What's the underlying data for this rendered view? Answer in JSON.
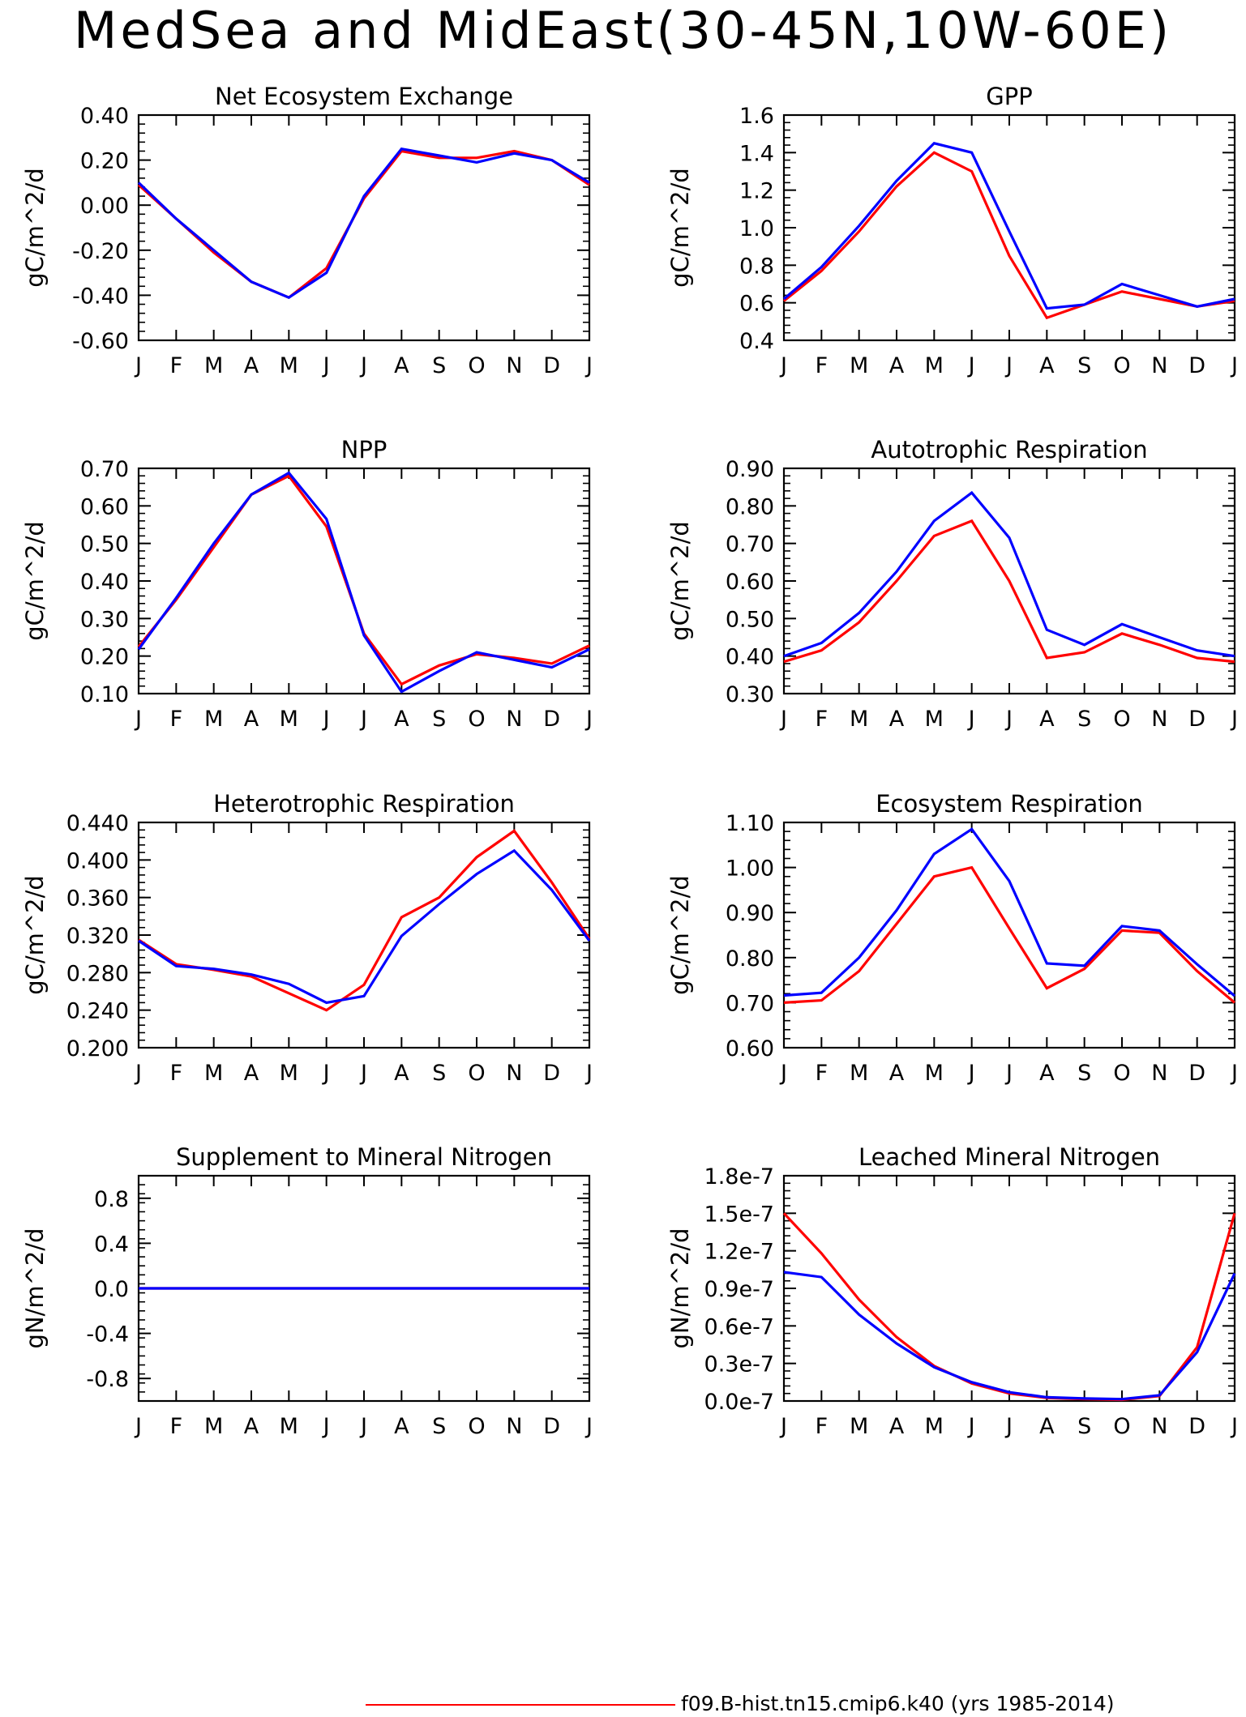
{
  "title": "MedSea and MidEast(30-45N,10W-60E)",
  "legend": {
    "label": "f09.B-hist.tn15.cmip6.k40 (yrs 1985-2014)",
    "color": "#ff0000"
  },
  "colors": {
    "red_series": "#ff0000",
    "blue_series": "#0000ff"
  },
  "chart_data": [
    {
      "type": "line",
      "title": "Net Ecosystem Exchange",
      "ylabel": "gC/m^2/d",
      "categories": [
        "J",
        "F",
        "M",
        "A",
        "M",
        "J",
        "J",
        "A",
        "S",
        "O",
        "N",
        "D",
        "J"
      ],
      "ylim": [
        -0.6,
        0.4
      ],
      "yticks": [
        "-0.60",
        "-0.40",
        "-0.20",
        "0.00",
        "0.20",
        "0.40"
      ],
      "series": [
        {
          "color": "#ff0000",
          "values": [
            0.09,
            -0.06,
            -0.21,
            -0.34,
            -0.41,
            -0.28,
            0.03,
            0.24,
            0.21,
            0.21,
            0.24,
            0.2,
            0.09
          ]
        },
        {
          "color": "#0000ff",
          "values": [
            0.1,
            -0.06,
            -0.2,
            -0.34,
            -0.41,
            -0.3,
            0.04,
            0.25,
            0.22,
            0.19,
            0.23,
            0.2,
            0.1
          ]
        }
      ]
    },
    {
      "type": "line",
      "title": "GPP",
      "ylabel": "gC/m^2/d",
      "categories": [
        "J",
        "F",
        "M",
        "A",
        "M",
        "J",
        "J",
        "A",
        "S",
        "O",
        "N",
        "D",
        "J"
      ],
      "ylim": [
        0.4,
        1.6
      ],
      "yticks": [
        "0.4",
        "0.6",
        "0.8",
        "1.0",
        "1.2",
        "1.4",
        "1.6"
      ],
      "series": [
        {
          "color": "#ff0000",
          "values": [
            0.61,
            0.77,
            0.98,
            1.22,
            1.4,
            1.3,
            0.85,
            0.52,
            0.59,
            0.66,
            0.62,
            0.58,
            0.61
          ]
        },
        {
          "color": "#0000ff",
          "values": [
            0.62,
            0.79,
            1.01,
            1.25,
            1.45,
            1.4,
            0.98,
            0.57,
            0.59,
            0.7,
            0.64,
            0.58,
            0.62
          ]
        }
      ]
    },
    {
      "type": "line",
      "title": "NPP",
      "ylabel": "gC/m^2/d",
      "categories": [
        "J",
        "F",
        "M",
        "A",
        "M",
        "J",
        "J",
        "A",
        "S",
        "O",
        "N",
        "D",
        "J"
      ],
      "ylim": [
        0.1,
        0.7
      ],
      "yticks": [
        "0.10",
        "0.20",
        "0.30",
        "0.40",
        "0.50",
        "0.60",
        "0.70"
      ],
      "series": [
        {
          "color": "#ff0000",
          "values": [
            0.225,
            0.35,
            0.49,
            0.63,
            0.68,
            0.545,
            0.26,
            0.125,
            0.175,
            0.205,
            0.195,
            0.18,
            0.228
          ]
        },
        {
          "color": "#0000ff",
          "values": [
            0.218,
            0.355,
            0.5,
            0.63,
            0.688,
            0.565,
            0.255,
            0.105,
            0.16,
            0.21,
            0.19,
            0.17,
            0.218
          ]
        }
      ]
    },
    {
      "type": "line",
      "title": "Autotrophic Respiration",
      "ylabel": "gC/m^2/d",
      "categories": [
        "J",
        "F",
        "M",
        "A",
        "M",
        "J",
        "J",
        "A",
        "S",
        "O",
        "N",
        "D",
        "J"
      ],
      "ylim": [
        0.3,
        0.9
      ],
      "yticks": [
        "0.30",
        "0.40",
        "0.50",
        "0.60",
        "0.70",
        "0.80",
        "0.90"
      ],
      "series": [
        {
          "color": "#ff0000",
          "values": [
            0.385,
            0.415,
            0.49,
            0.6,
            0.72,
            0.76,
            0.6,
            0.395,
            0.41,
            0.46,
            0.43,
            0.395,
            0.385
          ]
        },
        {
          "color": "#0000ff",
          "values": [
            0.4,
            0.435,
            0.515,
            0.625,
            0.76,
            0.835,
            0.715,
            0.47,
            0.43,
            0.485,
            0.45,
            0.415,
            0.4
          ]
        }
      ]
    },
    {
      "type": "line",
      "title": "Heterotrophic Respiration",
      "ylabel": "gC/m^2/d",
      "categories": [
        "J",
        "F",
        "M",
        "A",
        "M",
        "J",
        "J",
        "A",
        "S",
        "O",
        "N",
        "D",
        "J"
      ],
      "ylim": [
        0.2,
        0.44
      ],
      "yticks": [
        "0.200",
        "0.240",
        "0.280",
        "0.320",
        "0.360",
        "0.400",
        "0.440"
      ],
      "series": [
        {
          "color": "#ff0000",
          "values": [
            0.315,
            0.289,
            0.283,
            0.276,
            0.258,
            0.24,
            0.267,
            0.339,
            0.36,
            0.403,
            0.431,
            0.376,
            0.316
          ]
        },
        {
          "color": "#0000ff",
          "values": [
            0.314,
            0.287,
            0.284,
            0.278,
            0.268,
            0.248,
            0.255,
            0.319,
            0.353,
            0.385,
            0.41,
            0.368,
            0.314
          ]
        }
      ]
    },
    {
      "type": "line",
      "title": "Ecosystem Respiration",
      "ylabel": "gC/m^2/d",
      "categories": [
        "J",
        "F",
        "M",
        "A",
        "M",
        "J",
        "J",
        "A",
        "S",
        "O",
        "N",
        "D",
        "J"
      ],
      "ylim": [
        0.6,
        1.1
      ],
      "yticks": [
        "0.60",
        "0.70",
        "0.80",
        "0.90",
        "1.00",
        "1.10"
      ],
      "series": [
        {
          "color": "#ff0000",
          "values": [
            0.7,
            0.705,
            0.77,
            0.875,
            0.98,
            1.0,
            0.865,
            0.732,
            0.775,
            0.86,
            0.855,
            0.77,
            0.7
          ]
        },
        {
          "color": "#0000ff",
          "values": [
            0.716,
            0.722,
            0.8,
            0.905,
            1.03,
            1.085,
            0.97,
            0.787,
            0.782,
            0.87,
            0.86,
            0.785,
            0.715
          ]
        }
      ]
    },
    {
      "type": "line",
      "title": "Supplement to Mineral Nitrogen",
      "ylabel": "gN/m^2/d",
      "categories": [
        "J",
        "F",
        "M",
        "A",
        "M",
        "J",
        "J",
        "A",
        "S",
        "O",
        "N",
        "D",
        "J"
      ],
      "ylim": [
        -1.0,
        1.0
      ],
      "yticks": [
        "-0.8",
        "-0.4",
        "0.0",
        "0.4",
        "0.8"
      ],
      "series": [
        {
          "color": "#ff0000",
          "values": [
            0,
            0,
            0,
            0,
            0,
            0,
            0,
            0,
            0,
            0,
            0,
            0,
            0
          ]
        },
        {
          "color": "#0000ff",
          "values": [
            0,
            0,
            0,
            0,
            0,
            0,
            0,
            0,
            0,
            0,
            0,
            0,
            0
          ]
        }
      ]
    },
    {
      "type": "line",
      "title": "Leached Mineral Nitrogen",
      "ylabel": "gN/m^2/d",
      "categories": [
        "J",
        "F",
        "M",
        "A",
        "M",
        "J",
        "J",
        "A",
        "S",
        "O",
        "N",
        "D",
        "J"
      ],
      "ylim": [
        0,
        1.8e-07
      ],
      "yticks": [
        "0.0e-7",
        "0.3e-7",
        "0.6e-7",
        "0.9e-7",
        "1.2e-7",
        "1.5e-7",
        "1.8e-7"
      ],
      "series": [
        {
          "color": "#ff0000",
          "values": [
            1.5e-07,
            1.18e-07,
            8.1e-08,
            5.1e-08,
            2.8e-08,
            1.4e-08,
            6e-09,
            2.5e-09,
            1.5e-09,
            1e-09,
            4e-09,
            4.3e-08,
            1.5e-07
          ]
        },
        {
          "color": "#0000ff",
          "values": [
            1.03e-07,
            9.9e-08,
            6.9e-08,
            4.6e-08,
            2.7e-08,
            1.5e-08,
            7e-09,
            3e-09,
            2e-09,
            1.5e-09,
            4.5e-09,
            3.9e-08,
            1.02e-07
          ]
        }
      ]
    }
  ]
}
